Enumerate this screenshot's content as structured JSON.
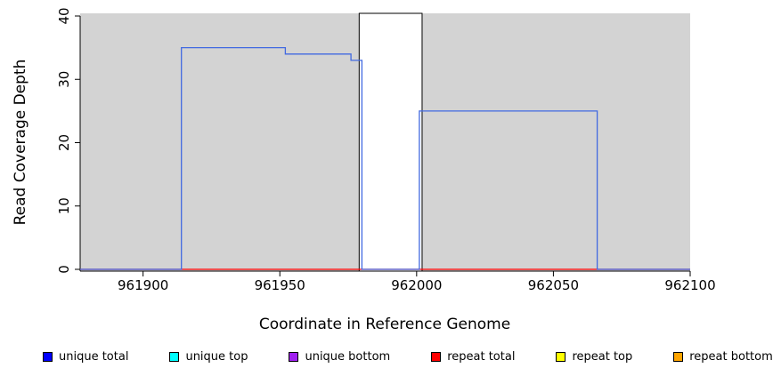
{
  "chart_data": {
    "type": "line",
    "title": "",
    "xlabel": "Coordinate in Reference Genome",
    "ylabel": "Read Coverage Depth",
    "xlim": [
      961877,
      962100
    ],
    "ylim": [
      0,
      40
    ],
    "x_ticks": [
      "961900",
      "961950",
      "962000",
      "962050",
      "962100"
    ],
    "x_tick_values": [
      961900,
      961950,
      962000,
      962050,
      962100
    ],
    "y_ticks": [
      "0",
      "10",
      "20",
      "30",
      "40"
    ],
    "y_tick_values": [
      0,
      10,
      20,
      30,
      40
    ],
    "plot_background": "#d3d3d3",
    "masked_region": {
      "x_start": 961979,
      "x_end": 962002,
      "fill": "#ffffff",
      "border": "#000000"
    },
    "series": [
      {
        "name": "unique total",
        "color": "#4169e1",
        "points": [
          [
            961877,
            0
          ],
          [
            961914,
            0
          ],
          [
            961914,
            35
          ],
          [
            961952,
            35
          ],
          [
            961952,
            34
          ],
          [
            961976,
            34
          ],
          [
            961976,
            33
          ],
          [
            961980,
            33
          ],
          [
            961980,
            0
          ],
          [
            962001,
            0
          ],
          [
            962001,
            25
          ],
          [
            962066,
            25
          ],
          [
            962066,
            0
          ],
          [
            962100,
            0
          ]
        ]
      },
      {
        "name": "repeat total",
        "color": "#ff0000",
        "points": [
          [
            961877,
            0
          ],
          [
            962100,
            0
          ]
        ]
      }
    ],
    "legend": [
      {
        "label": "unique total",
        "color": "#0000ff"
      },
      {
        "label": "unique top",
        "color": "#00ffff"
      },
      {
        "label": "unique bottom",
        "color": "#a020f0"
      },
      {
        "label": "repeat total",
        "color": "#ff0000"
      },
      {
        "label": "repeat top",
        "color": "#ffff00"
      },
      {
        "label": "repeat bottom",
        "color": "#ffa500"
      }
    ],
    "legend_position": "bottom",
    "grid": "off"
  }
}
